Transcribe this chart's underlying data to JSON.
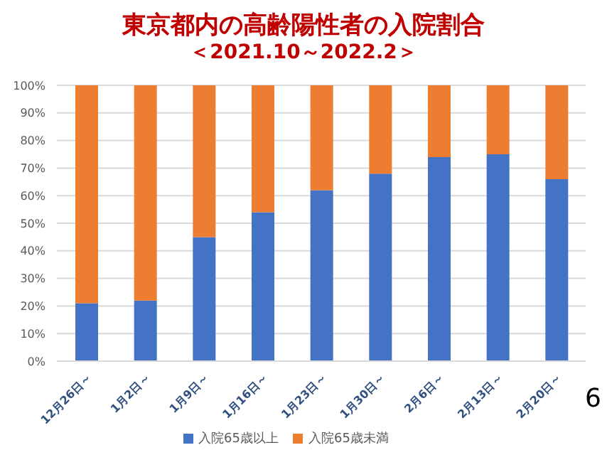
{
  "chart_data": {
    "type": "bar",
    "title": "東京都内の高齢陽性者の入院割合",
    "subtitle": "＜2021.10～2022.2＞",
    "categories": [
      "12月26日～",
      "1月2日～",
      "1月9日～",
      "1月16日～",
      "1月23日～",
      "1月30日～",
      "2月6日～",
      "2月13日～",
      "2月20日～"
    ],
    "series": [
      {
        "name": "入院65歳以上",
        "color": "#4472c4",
        "values": [
          21,
          22,
          45,
          54,
          62,
          68,
          74,
          75,
          66
        ]
      },
      {
        "name": "入院65歳未満",
        "color": "#ed7d31",
        "values": [
          79,
          78,
          55,
          46,
          38,
          32,
          26,
          25,
          34
        ]
      }
    ],
    "stacked": true,
    "ylim": [
      0,
      100
    ],
    "yticks": [
      {
        "value": 0,
        "label": "0%"
      },
      {
        "value": 10,
        "label": "10%"
      },
      {
        "value": 20,
        "label": "20%"
      },
      {
        "value": 30,
        "label": "30%"
      },
      {
        "value": 40,
        "label": "40%"
      },
      {
        "value": 50,
        "label": "50%"
      },
      {
        "value": 60,
        "label": "60%"
      },
      {
        "value": 70,
        "label": "70%"
      },
      {
        "value": 80,
        "label": "80%"
      },
      {
        "value": 90,
        "label": "90%"
      },
      {
        "value": 100,
        "label": "100%"
      }
    ],
    "grid": "y",
    "legend": "bottom",
    "annotations": [
      "6"
    ]
  }
}
